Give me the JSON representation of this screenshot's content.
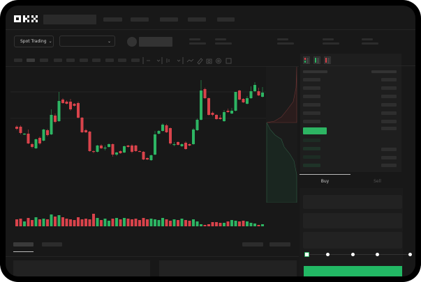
{
  "header": {
    "logo": "OKX"
  },
  "toolbar": {
    "market_label": "Spot Trading"
  },
  "trade_panel": {
    "buy_tab": "Buy",
    "sell_tab": "Sell",
    "leverage_steps": 5,
    "selected_step": 0
  },
  "colors": {
    "up": "#2db563",
    "down": "#d9434b",
    "buy_button": "#22b864",
    "background": "#181818"
  },
  "icons": [
    "orderbook-both-icon",
    "orderbook-bids-icon",
    "orderbook-asks-icon",
    "line-tool-icon",
    "ruler-icon",
    "camera-icon",
    "settings-icon",
    "fullscreen-icon",
    "chevron-down-icon"
  ],
  "chart_data": {
    "type": "candlestick",
    "grid": true,
    "candles_ohlc": [
      [
        118,
        120,
        113,
        115
      ],
      [
        118,
        120,
        107,
        109
      ],
      [
        107,
        109,
        106,
        108
      ],
      [
        108,
        114,
        93,
        94
      ],
      [
        93,
        95,
        87,
        89
      ],
      [
        87,
        101,
        86,
        100
      ],
      [
        102,
        104,
        92,
        94
      ],
      [
        98,
        115,
        97,
        114
      ],
      [
        113,
        115,
        104,
        106
      ],
      [
        107,
        143,
        106,
        135
      ],
      [
        134,
        137,
        123,
        125
      ],
      [
        126,
        168,
        125,
        155
      ],
      [
        157,
        159,
        151,
        152
      ],
      [
        154,
        156,
        150,
        151
      ],
      [
        154,
        158,
        141,
        143
      ],
      [
        151,
        152,
        147,
        148
      ],
      [
        152,
        154,
        130,
        131
      ],
      [
        131,
        132,
        109,
        110
      ],
      [
        113,
        115,
        109,
        110
      ],
      [
        111,
        112,
        82,
        83
      ],
      [
        83,
        84,
        80,
        82
      ],
      [
        82,
        92,
        81,
        91
      ],
      [
        91,
        93,
        86,
        87
      ],
      [
        87,
        91,
        84,
        88
      ],
      [
        89,
        94,
        88,
        93
      ],
      [
        93,
        94,
        75,
        78
      ],
      [
        78,
        82,
        76,
        81
      ],
      [
        83,
        84,
        79,
        80
      ],
      [
        81,
        91,
        80,
        90
      ],
      [
        91,
        92,
        88,
        89
      ],
      [
        91,
        93,
        80,
        82
      ],
      [
        91,
        92,
        82,
        83
      ],
      [
        83,
        84,
        82,
        82.5
      ],
      [
        82,
        83,
        70,
        71
      ],
      [
        73,
        74,
        70,
        71
      ],
      [
        70,
        78,
        69,
        77
      ],
      [
        78,
        112,
        77,
        107
      ],
      [
        108,
        113,
        107,
        112
      ],
      [
        112,
        123,
        111,
        121
      ],
      [
        120,
        122,
        109,
        110
      ],
      [
        116,
        117,
        92,
        94
      ],
      [
        92,
        96,
        90,
        93
      ],
      [
        96,
        97,
        91,
        92
      ],
      [
        90,
        94,
        89,
        93
      ],
      [
        95,
        97,
        85,
        86
      ],
      [
        93,
        94,
        90,
        91
      ],
      [
        93,
        116,
        92,
        114
      ],
      [
        113,
        130,
        112,
        128
      ],
      [
        128,
        185,
        127,
        170
      ],
      [
        172,
        174,
        158,
        159
      ],
      [
        159,
        160,
        134,
        135
      ],
      [
        138,
        140,
        133,
        135
      ],
      [
        135,
        136,
        128,
        129
      ],
      [
        131,
        135,
        128,
        129
      ],
      [
        126,
        142,
        125,
        139
      ],
      [
        141,
        144,
        138,
        139
      ],
      [
        137,
        145,
        136,
        141
      ],
      [
        141,
        168,
        140,
        168
      ],
      [
        170,
        171,
        156,
        157
      ],
      [
        158,
        159,
        152,
        153
      ],
      [
        151,
        162,
        150,
        159
      ],
      [
        159,
        176,
        158,
        169
      ],
      [
        169,
        182,
        168,
        178
      ],
      [
        169,
        174,
        162,
        163
      ],
      [
        161,
        175,
        160,
        167
      ]
    ],
    "volumes": [
      10,
      11,
      7,
      12,
      9,
      13,
      10,
      11,
      10,
      17,
      14,
      16,
      13,
      11,
      10,
      9,
      13,
      10,
      11,
      10,
      18,
      12,
      9,
      11,
      8,
      11,
      12,
      10,
      12,
      11,
      10,
      11,
      9,
      12,
      10,
      11,
      10,
      9,
      12,
      10,
      8,
      10,
      9,
      11,
      9,
      8,
      10,
      7,
      3,
      2,
      3,
      6,
      6,
      5,
      5,
      7,
      9,
      8,
      7,
      8,
      7,
      5,
      4,
      2,
      3
    ]
  }
}
